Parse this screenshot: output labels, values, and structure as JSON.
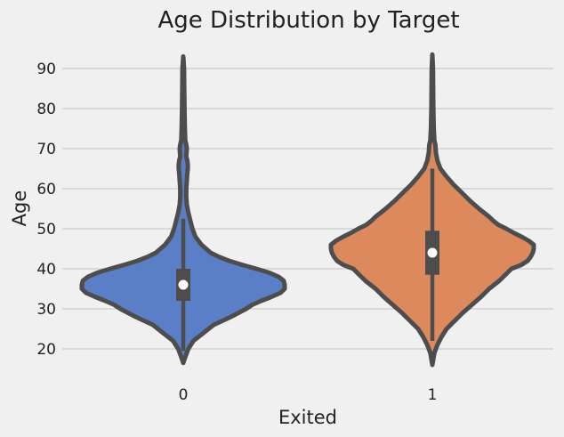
{
  "chart_data": {
    "type": "violin",
    "title": "Age Distribution by Target",
    "xlabel": "Exited",
    "ylabel": "Age",
    "categories": [
      "0",
      "1"
    ],
    "yticks": [
      20,
      30,
      40,
      50,
      60,
      70,
      80,
      90
    ],
    "ylim": [
      12.5,
      95
    ],
    "grid": true,
    "violins": [
      {
        "category": "0",
        "color": "#5b7fc7",
        "min": 16.5,
        "max": 93,
        "q1": 32,
        "median": 36,
        "q3": 40,
        "whisker_low": 19.5,
        "whisker_high": 52.5,
        "profile": [
          [
            16.5,
            0.0
          ],
          [
            18,
            0.02
          ],
          [
            20,
            0.05
          ],
          [
            22,
            0.1
          ],
          [
            24,
            0.2
          ],
          [
            26,
            0.3
          ],
          [
            28,
            0.47
          ],
          [
            30,
            0.62
          ],
          [
            31,
            0.68
          ],
          [
            32,
            0.77
          ],
          [
            33,
            0.87
          ],
          [
            34,
            0.96
          ],
          [
            35,
            1.0
          ],
          [
            36,
            1.0
          ],
          [
            37,
            0.99
          ],
          [
            38,
            0.94
          ],
          [
            39,
            0.85
          ],
          [
            40,
            0.72
          ],
          [
            41,
            0.58
          ],
          [
            42,
            0.45
          ],
          [
            43,
            0.35
          ],
          [
            44,
            0.27
          ],
          [
            46,
            0.18
          ],
          [
            48,
            0.12
          ],
          [
            50,
            0.09
          ],
          [
            52,
            0.07
          ],
          [
            54,
            0.05
          ],
          [
            56,
            0.035
          ],
          [
            58,
            0.03
          ],
          [
            60,
            0.03
          ],
          [
            62,
            0.035
          ],
          [
            64,
            0.04
          ],
          [
            65,
            0.045
          ],
          [
            66,
            0.045
          ],
          [
            67,
            0.04
          ],
          [
            68,
            0.03
          ],
          [
            70,
            0.035
          ],
          [
            71,
            0.03
          ],
          [
            72,
            0.02
          ],
          [
            75,
            0.016
          ],
          [
            80,
            0.012
          ],
          [
            85,
            0.01
          ],
          [
            90,
            0.008
          ],
          [
            93,
            0.0
          ]
        ]
      },
      {
        "category": "1",
        "color": "#dc8a5d",
        "min": 16,
        "max": 93.5,
        "q1": 38.5,
        "median": 44,
        "q3": 49.5,
        "whisker_low": 22,
        "whisker_high": 65,
        "profile": [
          [
            16,
            0.0
          ],
          [
            19,
            0.02
          ],
          [
            21,
            0.05
          ],
          [
            23,
            0.09
          ],
          [
            25,
            0.14
          ],
          [
            27,
            0.22
          ],
          [
            29,
            0.3
          ],
          [
            31,
            0.39
          ],
          [
            33,
            0.48
          ],
          [
            35,
            0.56
          ],
          [
            37,
            0.66
          ],
          [
            39,
            0.74
          ],
          [
            40,
            0.78
          ],
          [
            41,
            0.88
          ],
          [
            42,
            0.94
          ],
          [
            43,
            0.97
          ],
          [
            44,
            0.99
          ],
          [
            45,
            1.0
          ],
          [
            46,
            1.0
          ],
          [
            47,
            0.95
          ],
          [
            48,
            0.88
          ],
          [
            49,
            0.8
          ],
          [
            50,
            0.73
          ],
          [
            51,
            0.65
          ],
          [
            52,
            0.6
          ],
          [
            53,
            0.56
          ],
          [
            55,
            0.46
          ],
          [
            57,
            0.37
          ],
          [
            59,
            0.29
          ],
          [
            61,
            0.21
          ],
          [
            63,
            0.14
          ],
          [
            65,
            0.08
          ],
          [
            67,
            0.05
          ],
          [
            69,
            0.035
          ],
          [
            71,
            0.03
          ],
          [
            72,
            0.02
          ],
          [
            75,
            0.014
          ],
          [
            80,
            0.01
          ],
          [
            85,
            0.008
          ],
          [
            90,
            0.006
          ],
          [
            93.5,
            0.0
          ]
        ]
      }
    ]
  }
}
